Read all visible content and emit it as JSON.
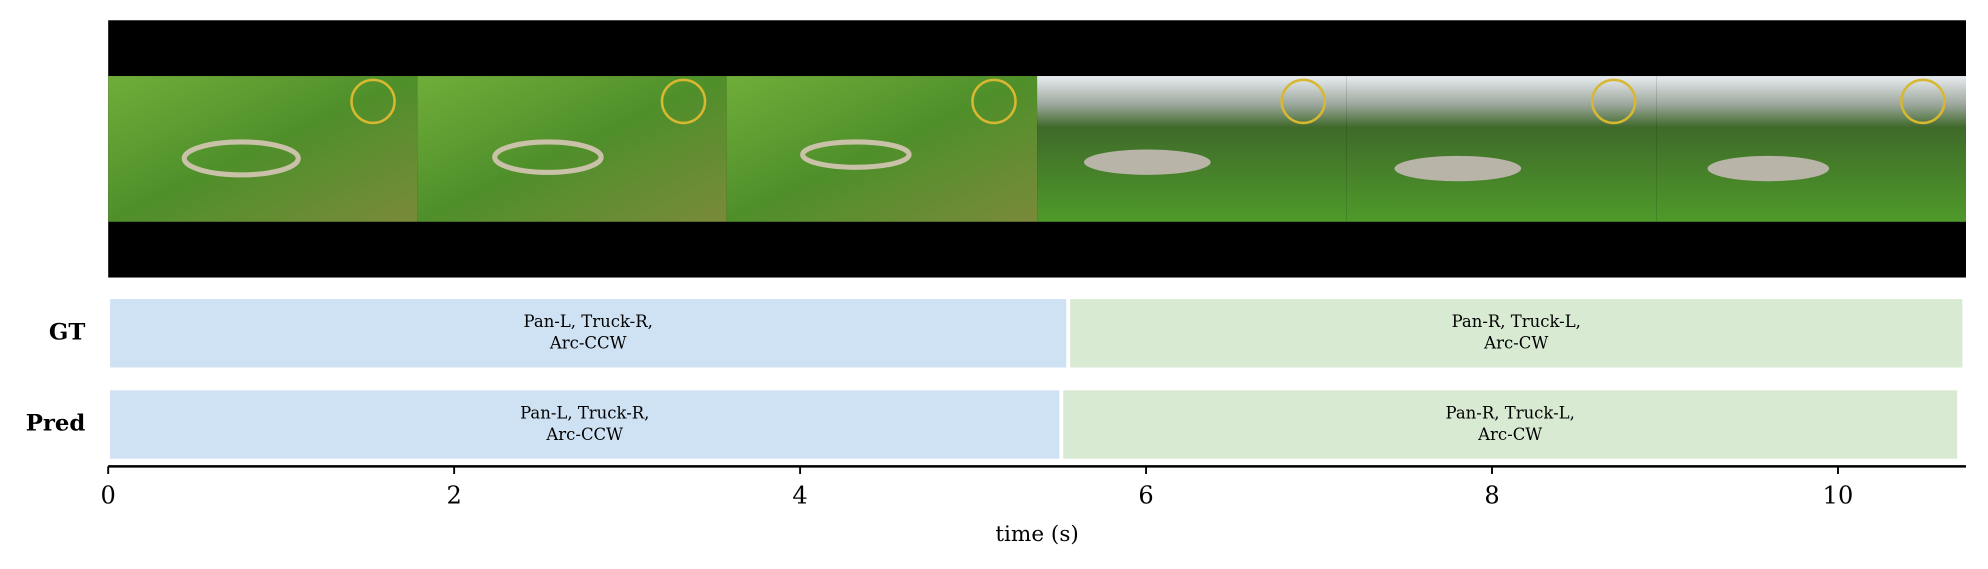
{
  "chart_data": {
    "type": "timeline",
    "xlabel": "time (s)",
    "xlim": [
      0,
      10.74
    ],
    "xticks": [
      0,
      2,
      4,
      6,
      8,
      10
    ],
    "rows": [
      {
        "name": "GT",
        "segments": [
          {
            "start": 0,
            "end": 5.55,
            "label": [
              "Pan-L, Truck-R,",
              "Arc-CCW"
            ],
            "color": "#cfe2f3"
          },
          {
            "start": 5.55,
            "end": 10.73,
            "label": [
              "Pan-R, Truck-L,",
              "Arc-CW"
            ],
            "color": "#d9ead3"
          }
        ]
      },
      {
        "name": "Pred",
        "segments": [
          {
            "start": 0,
            "end": 5.51,
            "label": [
              "Pan-L, Truck-R,",
              "Arc-CCW"
            ],
            "color": "#cfe2f3"
          },
          {
            "start": 5.51,
            "end": 10.7,
            "label": [
              "Pan-R, Truck-L,",
              "Arc-CW"
            ],
            "color": "#d9ead3"
          }
        ]
      }
    ]
  }
}
